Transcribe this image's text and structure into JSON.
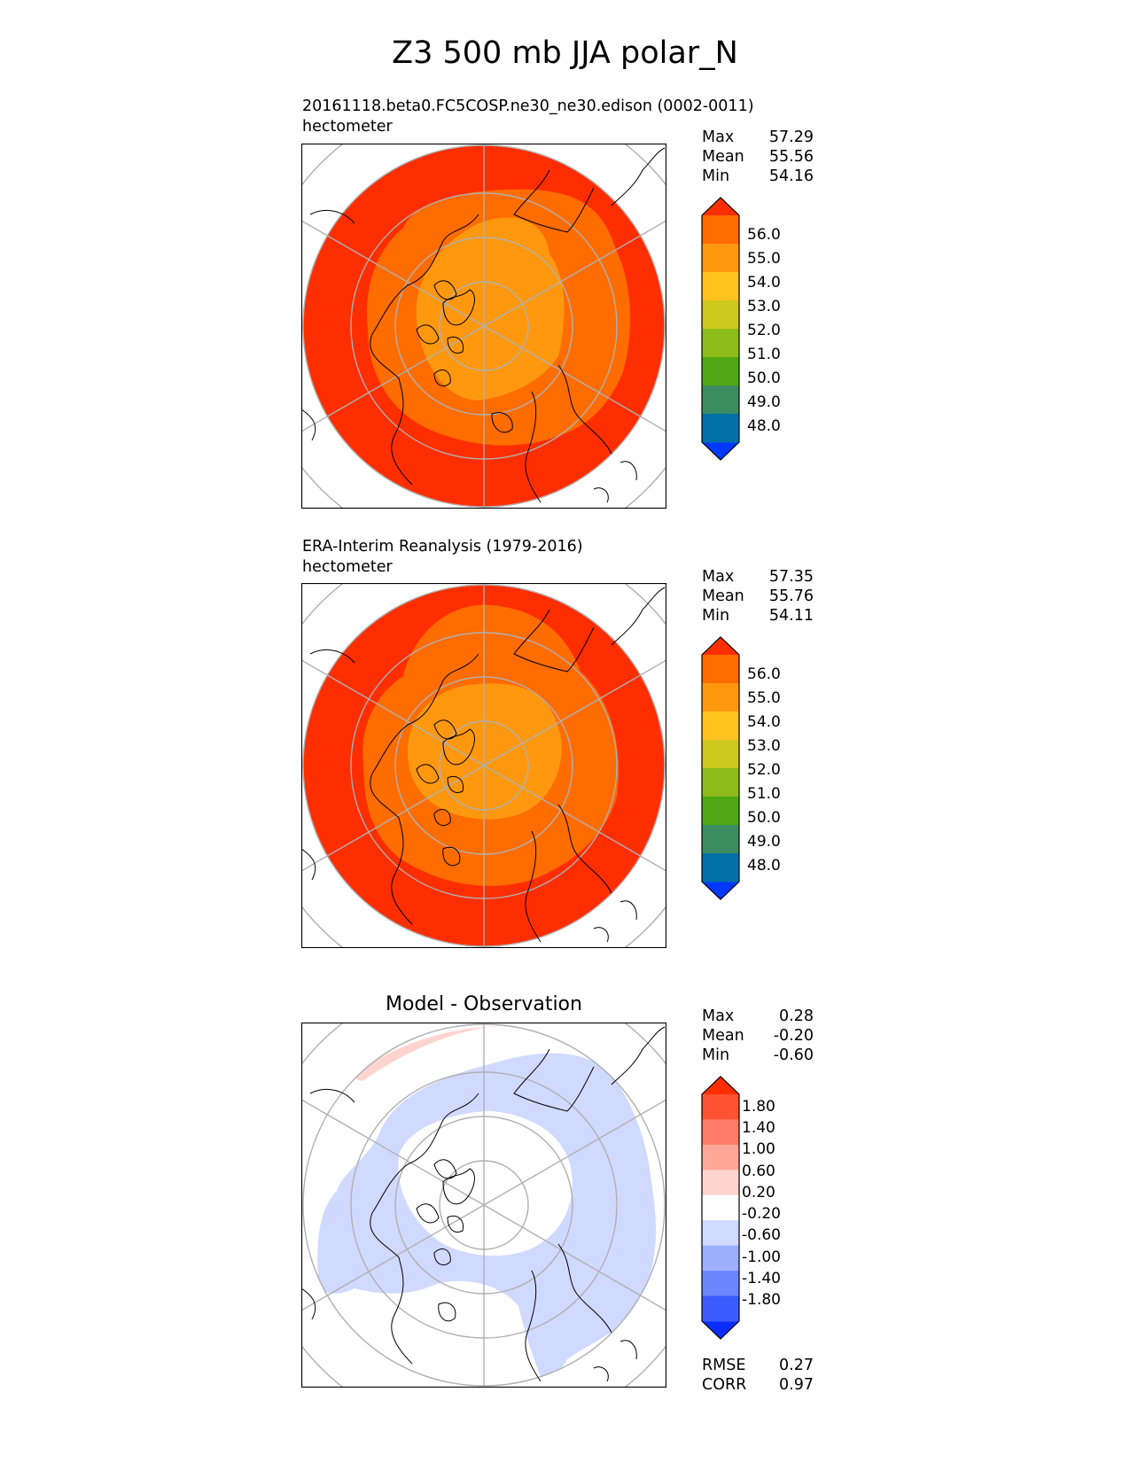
{
  "title": "Z3 500 mb JJA polar_N",
  "colors": {
    "abs_levels": [
      "#0038ff",
      "#0070a6",
      "#3b8c5f",
      "#4fa914",
      "#8cbb1a",
      "#cfc81e",
      "#ffc21f",
      "#ff980e",
      "#ff6c00",
      "#ff2e00"
    ],
    "diff_levels": [
      "#0a2dff",
      "#3c5cff",
      "#6b86ff",
      "#9dafff",
      "#d0d9ff",
      "#ffffff",
      "#ffd4cf",
      "#ffa899",
      "#ff7d66",
      "#ff5233",
      "#ff2e00"
    ],
    "land_outline": "#000000",
    "grid": "#b0b0b0"
  },
  "panels": [
    {
      "name": "test",
      "title": "20161118.beta0.FC5COSP.ne30_ne30.edison (0002-0011)",
      "units": "hectometer",
      "stats": {
        "max_label": "Max",
        "max": "57.29",
        "mean_label": "Mean",
        "mean": "55.56",
        "min_label": "Min",
        "min": "54.16"
      },
      "colorbar": {
        "labels": [
          "56.0",
          "55.0",
          "54.0",
          "53.0",
          "52.0",
          "51.0",
          "50.0",
          "49.0",
          "48.0"
        ]
      },
      "field": {
        "outer_level": 56.0,
        "mid_level": 55.0,
        "inner_level": 54.0
      }
    },
    {
      "name": "reference",
      "title": "ERA-Interim Reanalysis (1979-2016)",
      "units": "hectometer",
      "stats": {
        "max_label": "Max",
        "max": "57.35",
        "mean_label": "Mean",
        "mean": "55.76",
        "min_label": "Min",
        "min": "54.11"
      },
      "colorbar": {
        "labels": [
          "56.0",
          "55.0",
          "54.0",
          "53.0",
          "52.0",
          "51.0",
          "50.0",
          "49.0",
          "48.0"
        ]
      },
      "field": {
        "outer_level": 56.0,
        "mid_level": 55.0,
        "inner_level": 54.0
      }
    },
    {
      "name": "difference",
      "title": "Model - Observation",
      "stats": {
        "max_label": "Max",
        "max": "0.28",
        "mean_label": "Mean",
        "mean": "-0.20",
        "min_label": "Min",
        "min": "-0.60"
      },
      "colorbar": {
        "labels": [
          "1.80",
          "1.40",
          "1.00",
          "0.60",
          "0.20",
          "-0.20",
          "-0.60",
          "-1.00",
          "-1.40",
          "-1.80"
        ]
      },
      "metrics": {
        "rmse_label": "RMSE",
        "rmse": "0.27",
        "corr_label": "CORR",
        "corr": "0.97"
      }
    }
  ]
}
